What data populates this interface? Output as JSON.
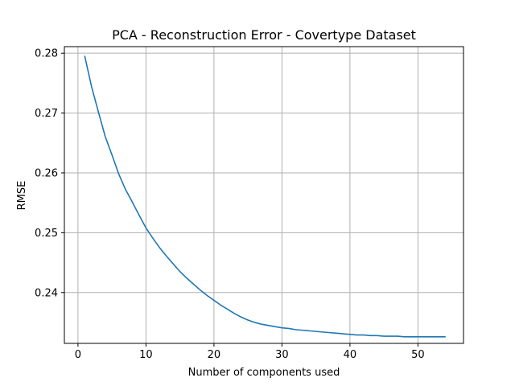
{
  "chart_data": {
    "type": "line",
    "title": "PCA - Reconstruction Error - Covertype Dataset",
    "xlabel": "Number of components used",
    "ylabel": "RMSE",
    "xlim": [
      -2,
      56.7
    ],
    "ylim": [
      0.2315,
      0.2811
    ],
    "xticks": [
      0,
      10,
      20,
      30,
      40,
      50
    ],
    "yticks": [
      0.24,
      0.25,
      0.26,
      0.27,
      0.28
    ],
    "grid": true,
    "line_color": "#1f77b4",
    "x": [
      1,
      2,
      3,
      4,
      5,
      6,
      7,
      8,
      9,
      10,
      11,
      12,
      13,
      14,
      15,
      16,
      17,
      18,
      19,
      20,
      21,
      22,
      23,
      24,
      25,
      26,
      27,
      28,
      29,
      30,
      31,
      32,
      33,
      34,
      35,
      36,
      37,
      38,
      39,
      40,
      41,
      42,
      43,
      44,
      45,
      46,
      47,
      48,
      49,
      50,
      51,
      52,
      53,
      54
    ],
    "y": [
      0.2795,
      0.2744,
      0.2702,
      0.2661,
      0.263,
      0.2598,
      0.2572,
      0.2551,
      0.2529,
      0.2508,
      0.2491,
      0.2475,
      0.2461,
      0.2448,
      0.2435,
      0.2424,
      0.2414,
      0.2404,
      0.2395,
      0.2387,
      0.2379,
      0.2372,
      0.2365,
      0.2359,
      0.2354,
      0.235,
      0.2347,
      0.2345,
      0.2343,
      0.2341,
      0.234,
      0.2338,
      0.2337,
      0.2336,
      0.2335,
      0.2334,
      0.2333,
      0.2332,
      0.2331,
      0.233,
      0.2329,
      0.2329,
      0.2328,
      0.2328,
      0.2327,
      0.2327,
      0.2327,
      0.2326,
      0.2326,
      0.2326,
      0.2326,
      0.2326,
      0.2326,
      0.2326
    ]
  }
}
